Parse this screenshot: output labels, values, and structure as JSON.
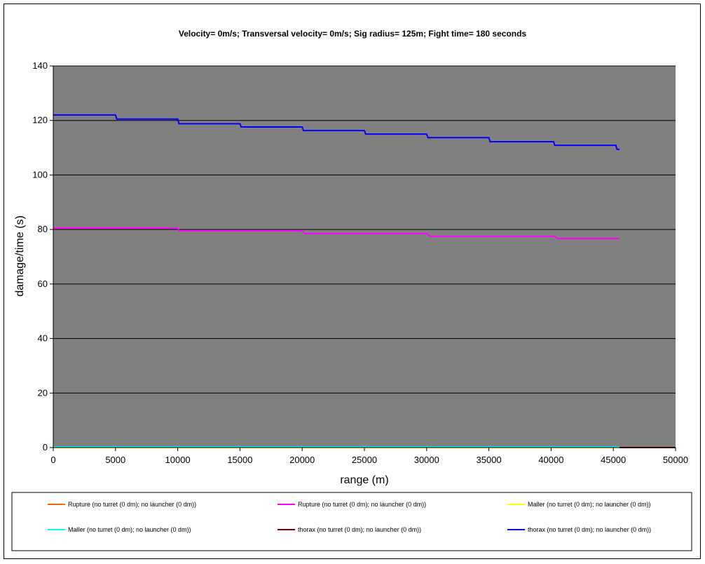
{
  "chart_data": {
    "type": "line",
    "title": "Velocity= 0m/s; Transversal velocity= 0m/s; Sig radius= 125m; Fight time= 180 seconds",
    "xlabel": "range (m)",
    "ylabel": "damage/time (s)",
    "xlim": [
      0,
      50000
    ],
    "ylim": [
      0,
      140
    ],
    "xticks": [
      0,
      5000,
      10000,
      15000,
      20000,
      25000,
      30000,
      35000,
      40000,
      45000,
      50000
    ],
    "yticks": [
      0,
      20,
      40,
      60,
      80,
      100,
      120,
      140
    ],
    "grid": "horizontal",
    "plot_background": "#808080",
    "legend_position": "bottom",
    "series": [
      {
        "name": "Rupture (no turret (0 dm); no launcher (0 dm))",
        "color": "#ff6600",
        "x": [
          0,
          45500,
          45500,
          50000
        ],
        "y": [
          0,
          0,
          0,
          0
        ]
      },
      {
        "name": "Rupture (no turret (0 dm); no launcher (0 dm))",
        "color": "#ff00ff",
        "x": [
          0,
          10000,
          10100,
          20000,
          20200,
          30000,
          30300,
          40300,
          40500,
          45500
        ],
        "y": [
          80.5,
          80.5,
          79.5,
          79.5,
          78.5,
          78.5,
          77.5,
          77.5,
          76.7,
          76.7
        ]
      },
      {
        "name": "Maller (no turret (0 dm); no launcher (0 dm))",
        "color": "#ffff00",
        "x": [
          0,
          45500
        ],
        "y": [
          0,
          0
        ]
      },
      {
        "name": "Maller (no turret (0 dm); no launcher (0 dm))",
        "color": "#00ffff",
        "x": [
          0,
          45500
        ],
        "y": [
          0.2,
          0.2
        ]
      },
      {
        "name": "thorax (no turret (0 dm); no launcher (0 dm))",
        "color": "#660000",
        "x": [
          45500,
          50000
        ],
        "y": [
          0,
          0
        ]
      },
      {
        "name": "thorax (no turret (0 dm); no launcher (0 dm))",
        "color": "#0000ff",
        "x": [
          0,
          5000,
          5100,
          10000,
          10100,
          15000,
          15100,
          20000,
          20100,
          25000,
          25100,
          30000,
          30100,
          35000,
          35100,
          40200,
          40300,
          45200,
          45300,
          45500
        ],
        "y": [
          122,
          122,
          120.5,
          120.5,
          118.8,
          118.8,
          117.6,
          117.6,
          116.3,
          116.3,
          115,
          115,
          113.7,
          113.7,
          112.2,
          112.2,
          110.9,
          110.9,
          109.4,
          109.4
        ]
      }
    ]
  }
}
